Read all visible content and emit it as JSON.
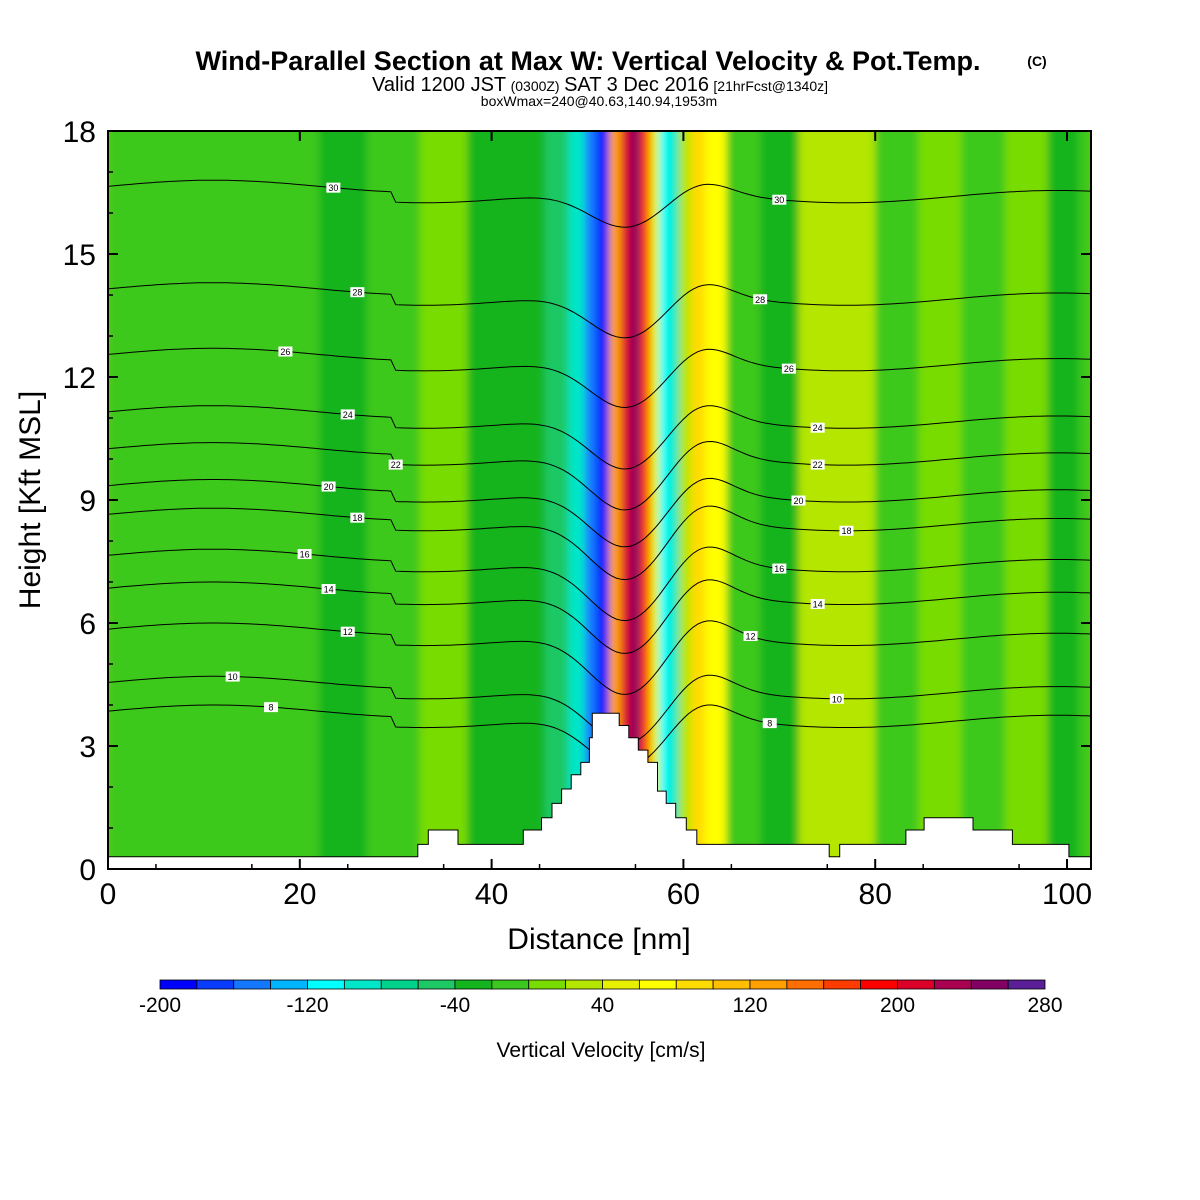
{
  "header": {
    "title_main": "Wind-Parallel Section at Max W: Vertical Velocity & Pot.Temp.",
    "title_mark": "(C)",
    "valid_a": "Valid 1200 JST",
    "valid_b": "(0300Z)",
    "valid_c": "SAT 3 Dec 2016",
    "valid_d": "[21hrFcst@1340z]",
    "box_line": "boxWmax=240@40.63,140.94,1953m"
  },
  "colors": {
    "palette": [
      "#0000ff",
      "#0a3cff",
      "#1478ff",
      "#00b4ff",
      "#00ffff",
      "#00e6c8",
      "#00d28c",
      "#1ec864",
      "#14b41e",
      "#3cc81e",
      "#78dc00",
      "#b4e600",
      "#e6f000",
      "#ffff00",
      "#ffdc00",
      "#ffbe00",
      "#ffa000",
      "#ff6e00",
      "#ff3c00",
      "#ff0000",
      "#dc0028",
      "#aa0050",
      "#820064",
      "#5a1e96"
    ],
    "background_field": "#6fd10a",
    "terrain": "#ffffff"
  },
  "chart_data": {
    "type": "heatmap",
    "xlabel": "Distance [nm]",
    "ylabel": "Height [Kft MSL]",
    "xlim": [
      0,
      102.5
    ],
    "ylim": [
      0,
      18
    ],
    "x_ticks": [
      0,
      20,
      40,
      60,
      80,
      100
    ],
    "x_tick_labels": [
      "0",
      "20",
      "40",
      "60",
      "80",
      "100"
    ],
    "y_ticks": [
      0,
      3,
      6,
      9,
      12,
      15,
      18
    ],
    "y_tick_labels": [
      "0",
      "3",
      "6",
      "9",
      "12",
      "15",
      "18"
    ],
    "colorbar": {
      "label": "Vertical Velocity [cm/s]",
      "min": -200,
      "max": 280,
      "step": 20,
      "tick_values": [
        -200,
        -120,
        -40,
        40,
        120,
        200,
        280
      ],
      "tick_labels": [
        "-200",
        "-120",
        "-40",
        "40",
        "120",
        "200",
        "280"
      ]
    },
    "bands": [
      {
        "x": 0,
        "w": -10
      },
      {
        "x": 10,
        "w": -20
      },
      {
        "x": 20,
        "w": -15
      },
      {
        "x": 24,
        "w": -25
      },
      {
        "x": 30,
        "w": -5
      },
      {
        "x": 35,
        "w": 10
      },
      {
        "x": 40,
        "w": -30
      },
      {
        "x": 44,
        "w": -40
      },
      {
        "x": 47,
        "w": -60
      },
      {
        "x": 49,
        "w": -100
      },
      {
        "x": 50.5,
        "w": -150
      },
      {
        "x": 51.5,
        "w": -190
      },
      {
        "x": 53,
        "w": 120
      },
      {
        "x": 54,
        "w": 200
      },
      {
        "x": 55,
        "w": 250
      },
      {
        "x": 56,
        "w": 160
      },
      {
        "x": 57,
        "w": 40
      },
      {
        "x": 58,
        "w": -120
      },
      {
        "x": 59,
        "w": -90
      },
      {
        "x": 60,
        "w": 30
      },
      {
        "x": 61.5,
        "w": 80
      },
      {
        "x": 63,
        "w": 60
      },
      {
        "x": 66,
        "w": -20
      },
      {
        "x": 70,
        "w": -30
      },
      {
        "x": 74,
        "w": 20
      },
      {
        "x": 78,
        "w": 30
      },
      {
        "x": 82,
        "w": -10
      },
      {
        "x": 87,
        "w": 10
      },
      {
        "x": 91,
        "w": -20
      },
      {
        "x": 96,
        "w": 10
      },
      {
        "x": 100,
        "w": -30
      },
      {
        "x": 102.5,
        "w": -20
      }
    ],
    "terrain": [
      {
        "x": 0,
        "z": 0.3
      },
      {
        "x": 32.3,
        "z": 0.3
      },
      {
        "x": 32.3,
        "z": 0.6
      },
      {
        "x": 33.4,
        "z": 0.6
      },
      {
        "x": 33.4,
        "z": 0.95
      },
      {
        "x": 36.5,
        "z": 0.95
      },
      {
        "x": 36.5,
        "z": 0.6
      },
      {
        "x": 43.3,
        "z": 0.6
      },
      {
        "x": 43.3,
        "z": 0.95
      },
      {
        "x": 45.2,
        "z": 0.95
      },
      {
        "x": 45.2,
        "z": 1.25
      },
      {
        "x": 46.3,
        "z": 1.25
      },
      {
        "x": 46.3,
        "z": 1.6
      },
      {
        "x": 47.3,
        "z": 1.6
      },
      {
        "x": 47.3,
        "z": 1.95
      },
      {
        "x": 48.3,
        "z": 1.95
      },
      {
        "x": 48.3,
        "z": 2.3
      },
      {
        "x": 49.3,
        "z": 2.3
      },
      {
        "x": 49.3,
        "z": 2.6
      },
      {
        "x": 50.2,
        "z": 2.6
      },
      {
        "x": 50.2,
        "z": 3.2
      },
      {
        "x": 50.5,
        "z": 3.2
      },
      {
        "x": 50.5,
        "z": 3.8
      },
      {
        "x": 53.3,
        "z": 3.8
      },
      {
        "x": 53.3,
        "z": 3.5
      },
      {
        "x": 54.3,
        "z": 3.5
      },
      {
        "x": 54.3,
        "z": 3.2
      },
      {
        "x": 55.3,
        "z": 3.2
      },
      {
        "x": 55.3,
        "z": 2.9
      },
      {
        "x": 56.3,
        "z": 2.9
      },
      {
        "x": 56.3,
        "z": 2.6
      },
      {
        "x": 57.3,
        "z": 2.6
      },
      {
        "x": 57.3,
        "z": 1.9
      },
      {
        "x": 58.2,
        "z": 1.9
      },
      {
        "x": 58.2,
        "z": 1.6
      },
      {
        "x": 59.2,
        "z": 1.6
      },
      {
        "x": 59.2,
        "z": 1.25
      },
      {
        "x": 60.3,
        "z": 1.25
      },
      {
        "x": 60.3,
        "z": 0.95
      },
      {
        "x": 61.4,
        "z": 0.95
      },
      {
        "x": 61.4,
        "z": 0.6
      },
      {
        "x": 75.2,
        "z": 0.6
      },
      {
        "x": 75.2,
        "z": 0.3
      },
      {
        "x": 76.3,
        "z": 0.3
      },
      {
        "x": 76.3,
        "z": 0.6
      },
      {
        "x": 83.2,
        "z": 0.6
      },
      {
        "x": 83.2,
        "z": 0.95
      },
      {
        "x": 85.1,
        "z": 0.95
      },
      {
        "x": 85.1,
        "z": 1.25
      },
      {
        "x": 90.2,
        "z": 1.25
      },
      {
        "x": 90.2,
        "z": 0.95
      },
      {
        "x": 94.3,
        "z": 0.95
      },
      {
        "x": 94.3,
        "z": 0.6
      },
      {
        "x": 100.2,
        "z": 0.6
      },
      {
        "x": 100.2,
        "z": 0.3
      },
      {
        "x": 102.5,
        "z": 0.3
      }
    ],
    "theta_contours": [
      {
        "base": 3.6,
        "amp": 1.3,
        "label": "8",
        "lx": 17,
        "rx": 69
      },
      {
        "base": 4.3,
        "amp": 1.4,
        "label": "10",
        "lx": 13,
        "rx": 76
      },
      {
        "base": 5.6,
        "amp": 1.5,
        "label": "12",
        "lx": 25,
        "rx": 67
      },
      {
        "base": 6.6,
        "amp": 1.5,
        "label": "14",
        "lx": 23,
        "rx": 74
      },
      {
        "base": 7.4,
        "amp": 1.5,
        "label": "16",
        "lx": 20.5,
        "rx": 70
      },
      {
        "base": 8.4,
        "amp": 1.5,
        "label": "18",
        "lx": 26,
        "rx": 77
      },
      {
        "base": 9.1,
        "amp": 1.4,
        "label": "20",
        "lx": 23,
        "rx": 72
      },
      {
        "base": 10,
        "amp": 1.4,
        "label": "22",
        "lx": 30,
        "rx": 74
      },
      {
        "base": 10.9,
        "amp": 1.3,
        "label": "24",
        "lx": 25,
        "rx": 74
      },
      {
        "base": 12.3,
        "amp": 1.2,
        "label": "26",
        "lx": 18.5,
        "rx": 71
      },
      {
        "base": 13.9,
        "amp": 1.1,
        "label": "28",
        "lx": 26,
        "rx": 68
      },
      {
        "base": 16.4,
        "amp": 0.9,
        "label": "30",
        "lx": 23.5,
        "rx": 70
      }
    ]
  }
}
